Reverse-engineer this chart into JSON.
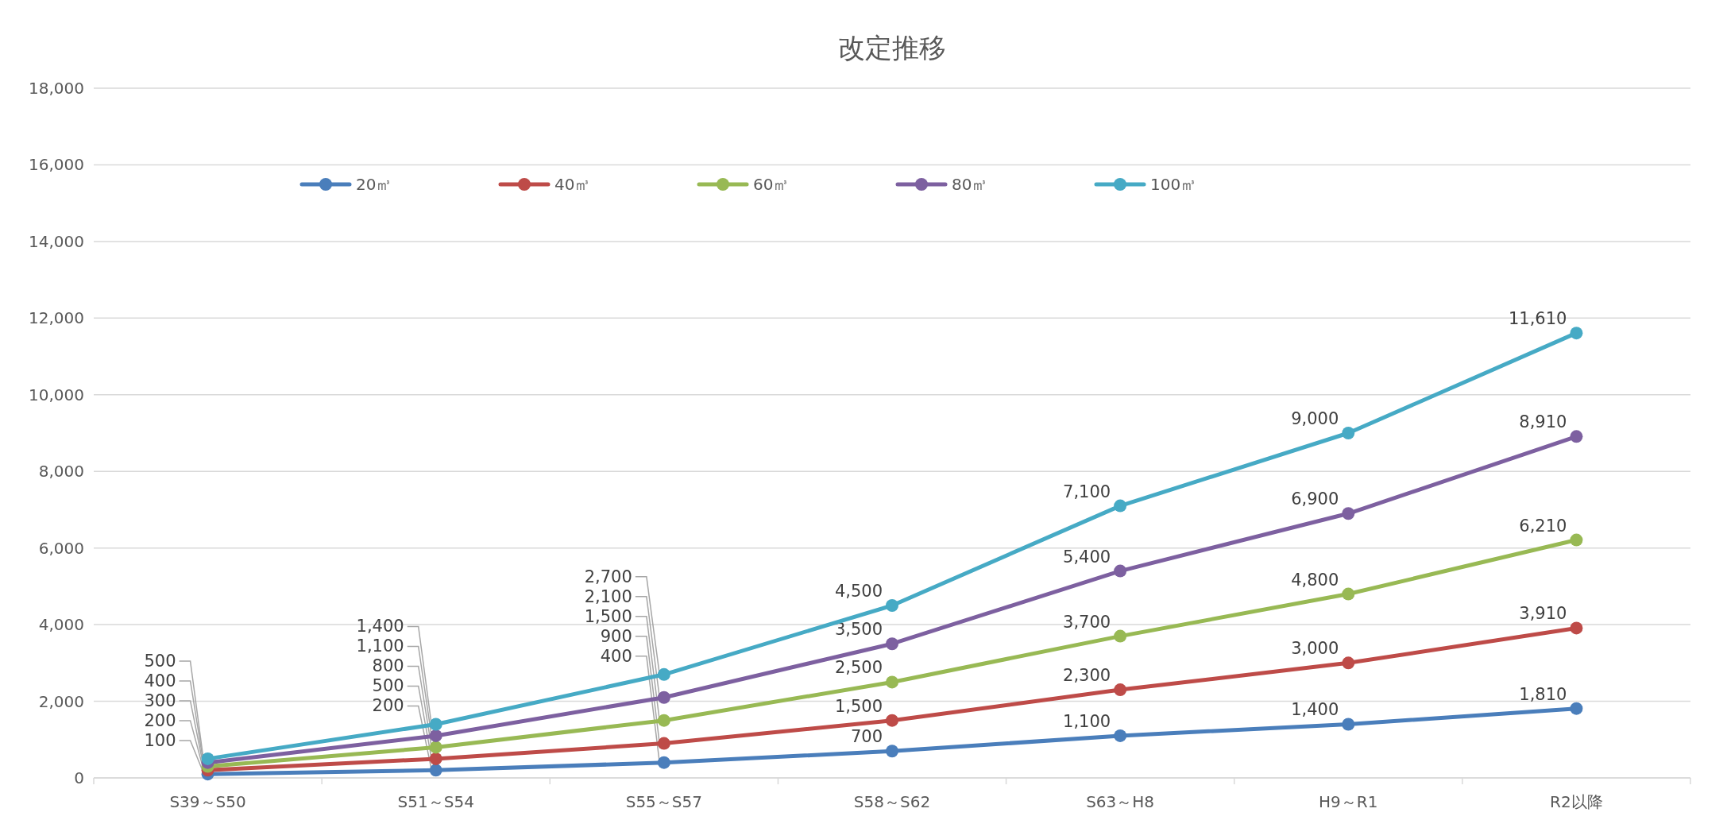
{
  "chart_data": {
    "type": "line",
    "title": "改定推移",
    "categories": [
      "S39～S50",
      "S51～S54",
      "S55～S57",
      "S58～S62",
      "S63～H8",
      "H9～R1",
      "R2以降"
    ],
    "series": [
      {
        "name": "20㎥",
        "color": "#4a7ebb",
        "values": [
          100,
          200,
          400,
          700,
          1100,
          1400,
          1810
        ],
        "value_labels": [
          "100",
          "200",
          "400",
          "700",
          "1,100",
          "1,400",
          "1,810"
        ]
      },
      {
        "name": "40㎥",
        "color": "#be4b48",
        "values": [
          200,
          500,
          900,
          1500,
          2300,
          3000,
          3910
        ],
        "value_labels": [
          "200",
          "500",
          "900",
          "1,500",
          "2,300",
          "3,000",
          "3,910"
        ]
      },
      {
        "name": "60㎥",
        "color": "#98b954",
        "values": [
          300,
          800,
          1500,
          2500,
          3700,
          4800,
          6210
        ],
        "value_labels": [
          "300",
          "800",
          "1,500",
          "2,500",
          "3,700",
          "4,800",
          "6,210"
        ]
      },
      {
        "name": "80㎥",
        "color": "#7d60a0",
        "values": [
          400,
          1100,
          2100,
          3500,
          5400,
          6900,
          8910
        ],
        "value_labels": [
          "400",
          "1,100",
          "2,100",
          "3,500",
          "5,400",
          "6,900",
          "8,910"
        ]
      },
      {
        "name": "100㎥",
        "color": "#46aac5",
        "values": [
          500,
          1400,
          2700,
          4500,
          7100,
          9000,
          11610
        ],
        "value_labels": [
          "500",
          "1,400",
          "2,700",
          "4,500",
          "7,100",
          "9,000",
          "11,610"
        ]
      }
    ],
    "ylim": [
      0,
      18000
    ],
    "yticks": [
      0,
      {
        "value": 2000,
        "label": "2,000"
      },
      {
        "value": 4000,
        "label": "4,000"
      },
      {
        "value": 6000,
        "label": "6,000"
      },
      {
        "value": 8000,
        "label": "8,000"
      },
      {
        "value": 10000,
        "label": "10,000"
      },
      {
        "value": 12000,
        "label": "12,000"
      },
      {
        "value": 14000,
        "label": "14,000"
      },
      {
        "value": 16000,
        "label": "16,000"
      },
      {
        "value": 18000,
        "label": "18,000"
      }
    ],
    "grid": "y",
    "legend": "top",
    "marker": "circle",
    "line_style": "solid",
    "data_labels": true
  }
}
